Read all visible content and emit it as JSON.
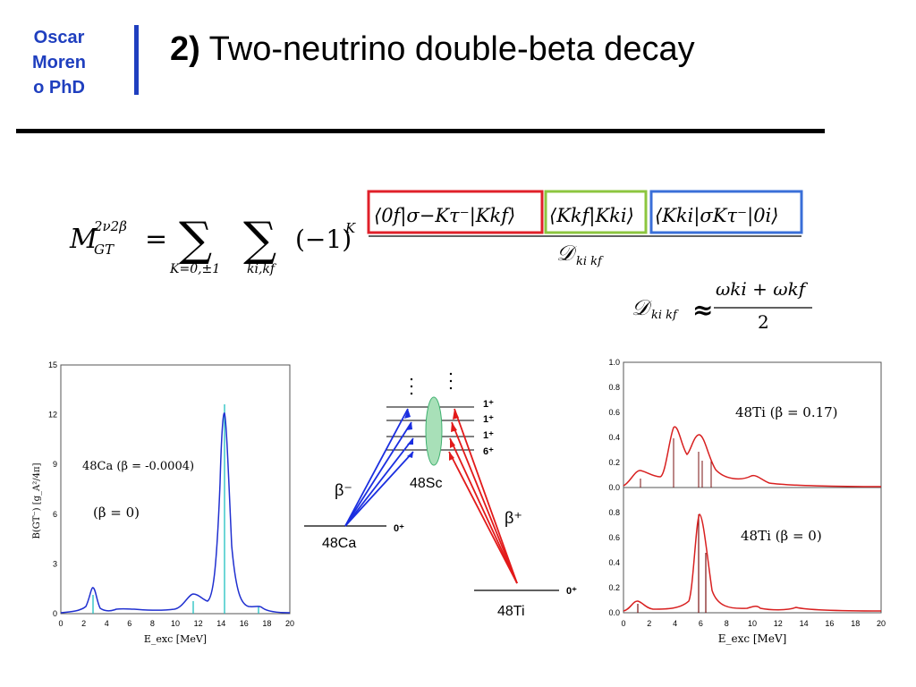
{
  "header": {
    "author": "Oscar Moreno PhD",
    "title_number": "2)",
    "title_text": "Two-neutrino double-beta decay"
  },
  "formula": {
    "lhs": "M",
    "lhs_sub": "GT",
    "lhs_sup": "2ν2β",
    "sum1_sub": "K=0,±1",
    "sum2_sub": "ki,kf",
    "sign": "(−1)",
    "sign_exp": "K",
    "box_red": "⟨0f|σ−Kτ−|Kkf⟩",
    "box_green": "⟨Kkf|Kki⟩",
    "box_blue": "⟨Kki|σKτ−|0i⟩",
    "denominator": "Dki kf",
    "approx_lhs": "Dki kf",
    "approx_numerator": "ωki + ωkf",
    "approx_denominator": "2",
    "colors": {
      "red": "#e0202a",
      "green": "#8cc63f",
      "blue": "#3a6fd8"
    }
  },
  "left_plot": {
    "ylabel": "B(GT⁻) [g_A²/4π]",
    "xlabel": "E_exc [MeV]",
    "y_ticks": [
      "0",
      "3",
      "6",
      "9",
      "12",
      "15"
    ],
    "x_ticks": [
      "0",
      "2",
      "4",
      "6",
      "8",
      "10",
      "12",
      "14",
      "16",
      "18",
      "20"
    ],
    "label_nucleus": "48Ca (β = -0.0004)",
    "label_beta": "(β = 0)"
  },
  "level_diagram": {
    "ca": "48Ca",
    "sc": "48Sc",
    "ti": "48Ti",
    "beta_minus": "β⁻",
    "beta_plus": "β⁺",
    "ground_spin": "0⁺",
    "levels": [
      "1⁺",
      "1⁺",
      "1⁺",
      "6⁺"
    ]
  },
  "right_plots": {
    "top_label": "48Ti (β = 0.17)",
    "bottom_label": "48Ti (β = 0)",
    "xlabel": "E_exc [MeV]",
    "top_y_ticks": [
      "0.0",
      "0.2",
      "0.4",
      "0.6",
      "0.8",
      "1.0"
    ],
    "bottom_y_ticks": [
      "0.0",
      "0.2",
      "0.4",
      "0.6",
      "0.8"
    ],
    "x_ticks": [
      "0",
      "2",
      "4",
      "6",
      "8",
      "10",
      "12",
      "14",
      "16",
      "18",
      "20"
    ]
  }
}
